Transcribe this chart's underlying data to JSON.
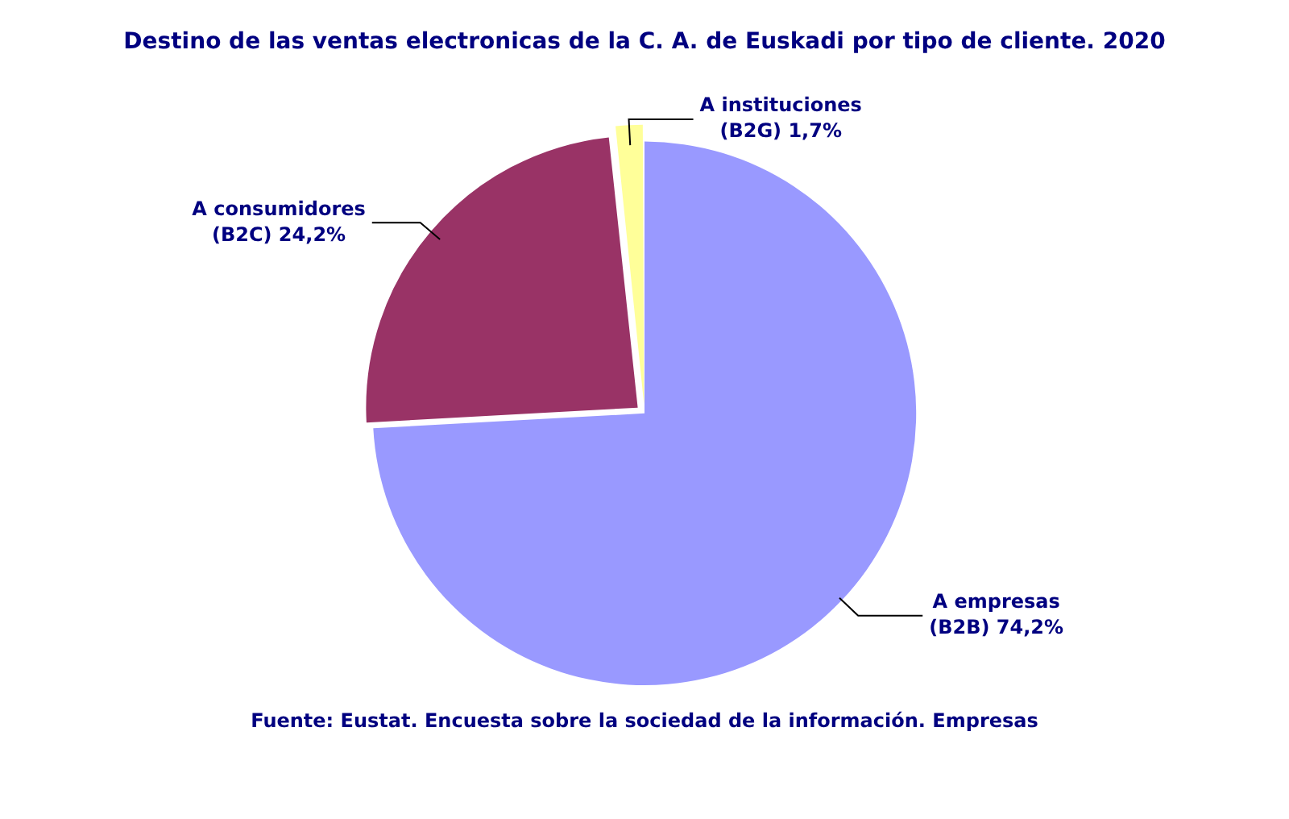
{
  "chart_data": {
    "type": "pie",
    "title": "Destino de las ventas electronicas de la C. A. de Euskadi por tipo de cliente. 2020",
    "categories": [
      "A empresas (B2B)",
      "A consumidores (B2C)",
      "A instituciones (B2G)"
    ],
    "values": [
      74.2,
      24.2,
      1.7
    ],
    "colors": [
      "#9999ff",
      "#993366",
      "#ffff99"
    ],
    "value_labels": [
      "74,2%",
      "24,2%",
      "1,7%"
    ],
    "legend": false,
    "annotations": [
      "Fuente: Eustat. Encuesta sobre la sociedad de la información. Empresas"
    ]
  }
}
